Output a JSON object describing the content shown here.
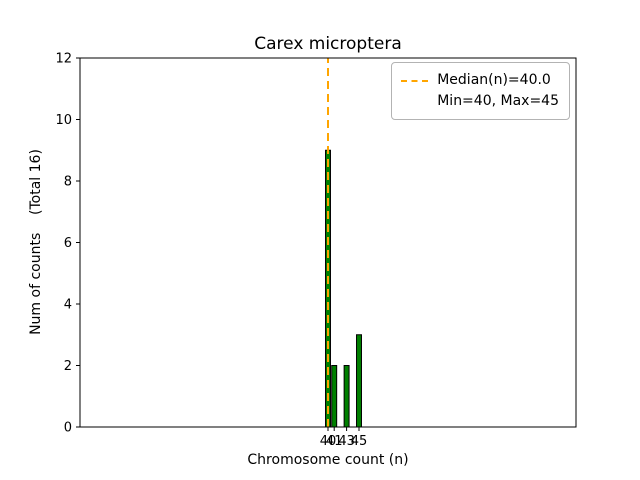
{
  "figure": {
    "background": "#ffffff"
  },
  "chart_data": {
    "type": "bar",
    "title": "Carex microptera",
    "xlabel": "Chromosome count (n)",
    "ylabel": "Num of counts    (Total 16)",
    "x": [
      40,
      41,
      43,
      45
    ],
    "values": [
      9,
      2,
      2,
      3
    ],
    "total_counts": 16,
    "median": 40.0,
    "min": 40,
    "max": 45,
    "xlim": [
      0,
      80
    ],
    "ylim": [
      0,
      12
    ],
    "xticks": [
      40,
      41,
      43,
      45
    ],
    "yticks": [
      0,
      2,
      4,
      6,
      8,
      10,
      12
    ],
    "bar_width": 0.8,
    "bar_color": "#008000",
    "bar_edge_color": "#000000",
    "median_line_color": "#ffa500",
    "median_line_style": "dashed",
    "grid": false,
    "legend_position": "upper right",
    "legend_labels": [
      "Median(n)=40.0",
      "Min=40, Max=45"
    ]
  }
}
